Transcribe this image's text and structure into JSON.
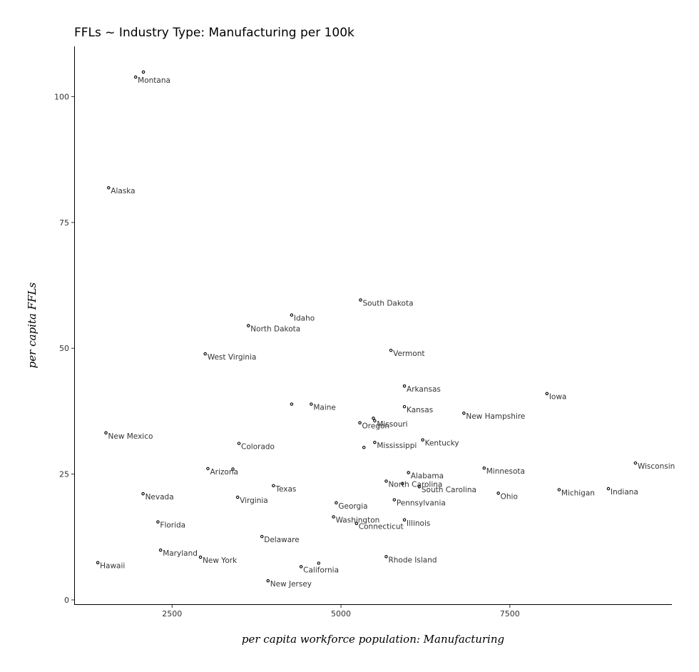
{
  "chart_data": {
    "type": "scatter",
    "title": "FFLs ~ Industry Type: Manufacturing per 100k",
    "xlabel": "per capita workforce population: Manufacturing",
    "ylabel": "per capita FFLs",
    "xlim": [
      1050,
      9900
    ],
    "ylim": [
      -1,
      110
    ],
    "x_ticks": [
      2500,
      5000,
      7500
    ],
    "x_tick_labels": [
      "2500",
      "5000",
      "7500"
    ],
    "y_ticks": [
      0,
      25,
      50,
      75,
      100
    ],
    "y_tick_labels": [
      "0",
      "25",
      "50",
      "75",
      "100"
    ],
    "grid": false,
    "legend": "none",
    "points": [
      {
        "label": "Montana",
        "x": 1960,
        "y": 103.9
      },
      {
        "label": null,
        "x": 2075,
        "y": 104.9
      },
      {
        "label": "Alaska",
        "x": 1560,
        "y": 81.9
      },
      {
        "label": "South Dakota",
        "x": 5290,
        "y": 59.6
      },
      {
        "label": "Idaho",
        "x": 4270,
        "y": 56.6
      },
      {
        "label": "North Dakota",
        "x": 3630,
        "y": 54.5
      },
      {
        "label": "Vermont",
        "x": 5740,
        "y": 49.6
      },
      {
        "label": "West Virginia",
        "x": 2990,
        "y": 48.9
      },
      {
        "label": "Arkansas",
        "x": 5940,
        "y": 42.5
      },
      {
        "label": "Iowa",
        "x": 8050,
        "y": 41.0
      },
      {
        "label": null,
        "x": 4270,
        "y": 38.9
      },
      {
        "label": "Maine",
        "x": 4560,
        "y": 38.9
      },
      {
        "label": "Kansas",
        "x": 5940,
        "y": 38.4
      },
      {
        "label": "New Hampshire",
        "x": 6820,
        "y": 37.1
      },
      {
        "label": null,
        "x": 5480,
        "y": 36.1
      },
      {
        "label": "Missouri",
        "x": 5500,
        "y": 35.6
      },
      {
        "label": "Oregon",
        "x": 5280,
        "y": 35.2
      },
      {
        "label": "New Mexico",
        "x": 1520,
        "y": 33.2
      },
      {
        "label": "Kentucky",
        "x": 6210,
        "y": 31.8
      },
      {
        "label": "Mississippi",
        "x": 5500,
        "y": 31.3
      },
      {
        "label": "Colorado",
        "x": 3490,
        "y": 31.1
      },
      {
        "label": null,
        "x": 5340,
        "y": 30.3
      },
      {
        "label": "Wisconsin",
        "x": 9360,
        "y": 27.2
      },
      {
        "label": "Minnesota",
        "x": 7120,
        "y": 26.2
      },
      {
        "label": "Arizona",
        "x": 3030,
        "y": 26.1
      },
      {
        "label": null,
        "x": 3400,
        "y": 26.0
      },
      {
        "label": "Alabama",
        "x": 6000,
        "y": 25.3
      },
      {
        "label": "North Carolina",
        "x": 5670,
        "y": 23.6
      },
      {
        "label": null,
        "x": 5910,
        "y": 23.1
      },
      {
        "label": "Texas",
        "x": 4000,
        "y": 22.7
      },
      {
        "label": "South Carolina",
        "x": 6160,
        "y": 22.5
      },
      {
        "label": "Michigan",
        "x": 8230,
        "y": 21.9
      },
      {
        "label": "Indiana",
        "x": 8960,
        "y": 22.1
      },
      {
        "label": "Nevada",
        "x": 2070,
        "y": 21.1
      },
      {
        "label": "Ohio",
        "x": 7330,
        "y": 21.2
      },
      {
        "label": "Virginia",
        "x": 3470,
        "y": 20.4
      },
      {
        "label": "Pennsylvania",
        "x": 5790,
        "y": 19.9
      },
      {
        "label": "Georgia",
        "x": 4930,
        "y": 19.3
      },
      {
        "label": "Washington",
        "x": 4890,
        "y": 16.5
      },
      {
        "label": "Illinois",
        "x": 5940,
        "y": 15.9
      },
      {
        "label": "Florida",
        "x": 2290,
        "y": 15.5
      },
      {
        "label": "Connecticut",
        "x": 5230,
        "y": 15.2
      },
      {
        "label": "Delaware",
        "x": 3830,
        "y": 12.6
      },
      {
        "label": "Maryland",
        "x": 2330,
        "y": 9.9
      },
      {
        "label": "Rhode Island",
        "x": 5670,
        "y": 8.6
      },
      {
        "label": "New York",
        "x": 2920,
        "y": 8.5
      },
      {
        "label": "Hawaii",
        "x": 1400,
        "y": 7.4
      },
      {
        "label": null,
        "x": 4670,
        "y": 7.3
      },
      {
        "label": "California",
        "x": 4410,
        "y": 6.6
      },
      {
        "label": "New Jersey",
        "x": 3920,
        "y": 3.8
      }
    ]
  }
}
